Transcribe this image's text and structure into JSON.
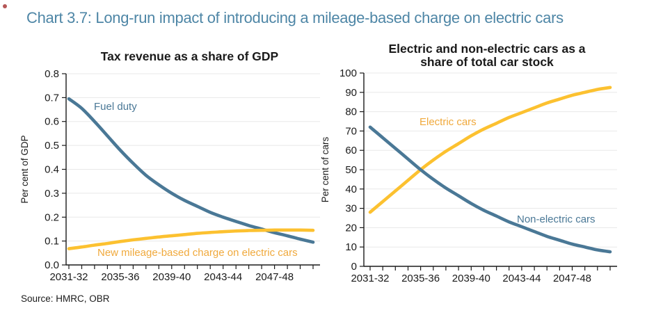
{
  "page": {
    "main_title": "Chart 3.7: Long-run impact of introducing a mileage-based charge on electric cars",
    "source": "Source: HMRC, OBR"
  },
  "colors": {
    "title_blue": "#4e86a6",
    "line_blue": "#4a7896",
    "line_yellow": "#fcc130",
    "label_yellow": "#f0a93c",
    "grid": "#e8e8e8",
    "axis": "#1a1a1a",
    "text": "#1a1a1a"
  },
  "chart_data": [
    {
      "type": "line",
      "title": "Tax revenue as a share of GDP",
      "ylabel": "Per cent of GDP",
      "ylim": [
        0,
        0.8
      ],
      "ytick_labels": [
        "0.0",
        "0.1",
        "0.2",
        "0.3",
        "0.4",
        "0.5",
        "0.6",
        "0.7",
        "0.8"
      ],
      "grid": true,
      "legend_position": "inline-labels",
      "categories": [
        "2031-32",
        "2032-33",
        "2033-34",
        "2034-35",
        "2035-36",
        "2036-37",
        "2037-38",
        "2038-39",
        "2039-40",
        "2040-41",
        "2041-42",
        "2042-43",
        "2043-44",
        "2044-45",
        "2045-46",
        "2046-47",
        "2047-48",
        "2048-49",
        "2049-50",
        "2050-51"
      ],
      "xtick_label_every": 4,
      "xtick_labels_shown": [
        "2031-32",
        "2035-36",
        "2039-40",
        "2043-44",
        "2047-48"
      ],
      "series": [
        {
          "name": "Fuel duty",
          "color_key": "blue",
          "values": [
            0.695,
            0.655,
            0.6,
            0.54,
            0.48,
            0.425,
            0.375,
            0.335,
            0.3,
            0.27,
            0.245,
            0.22,
            0.2,
            0.182,
            0.165,
            0.15,
            0.135,
            0.122,
            0.108,
            0.095
          ]
        },
        {
          "name": "New mileage-based charge on electric cars",
          "color_key": "yellow",
          "values": [
            0.068,
            0.075,
            0.083,
            0.09,
            0.098,
            0.105,
            0.111,
            0.117,
            0.122,
            0.127,
            0.132,
            0.136,
            0.139,
            0.142,
            0.144,
            0.145,
            0.146,
            0.146,
            0.146,
            0.145
          ]
        }
      ]
    },
    {
      "type": "line",
      "title": "Electric and non-electric cars as a share of total car stock",
      "title_lines": [
        "Electric and non-electric cars as a",
        "share of total car stock"
      ],
      "ylabel": "Per cent of cars",
      "ylim": [
        0,
        100
      ],
      "ytick_labels": [
        "0",
        "10",
        "20",
        "30",
        "40",
        "50",
        "60",
        "70",
        "80",
        "90",
        "100"
      ],
      "grid": true,
      "legend_position": "inline-labels",
      "categories": [
        "2031-32",
        "2032-33",
        "2033-34",
        "2034-35",
        "2035-36",
        "2036-37",
        "2037-38",
        "2038-39",
        "2039-40",
        "2040-41",
        "2041-42",
        "2042-43",
        "2043-44",
        "2044-45",
        "2045-46",
        "2046-47",
        "2047-48",
        "2048-49",
        "2049-50",
        "2050-51"
      ],
      "xtick_label_every": 4,
      "xtick_labels_shown": [
        "2031-32",
        "2035-36",
        "2039-40",
        "2043-44",
        "2047-48"
      ],
      "series": [
        {
          "name": "Electric cars",
          "color_key": "yellow",
          "values": [
            28,
            33.5,
            39,
            44.5,
            50,
            55,
            59.5,
            63.5,
            67.5,
            71,
            74,
            77,
            79.5,
            82,
            84.5,
            86.5,
            88.5,
            90,
            91.5,
            92.5
          ]
        },
        {
          "name": "Non-electric cars",
          "color_key": "blue",
          "values": [
            72,
            66.5,
            61,
            55.5,
            50,
            45,
            40.5,
            36.5,
            32.5,
            29,
            26,
            23,
            20.5,
            18,
            15.5,
            13.5,
            11.5,
            10,
            8.5,
            7.5
          ]
        }
      ]
    }
  ]
}
